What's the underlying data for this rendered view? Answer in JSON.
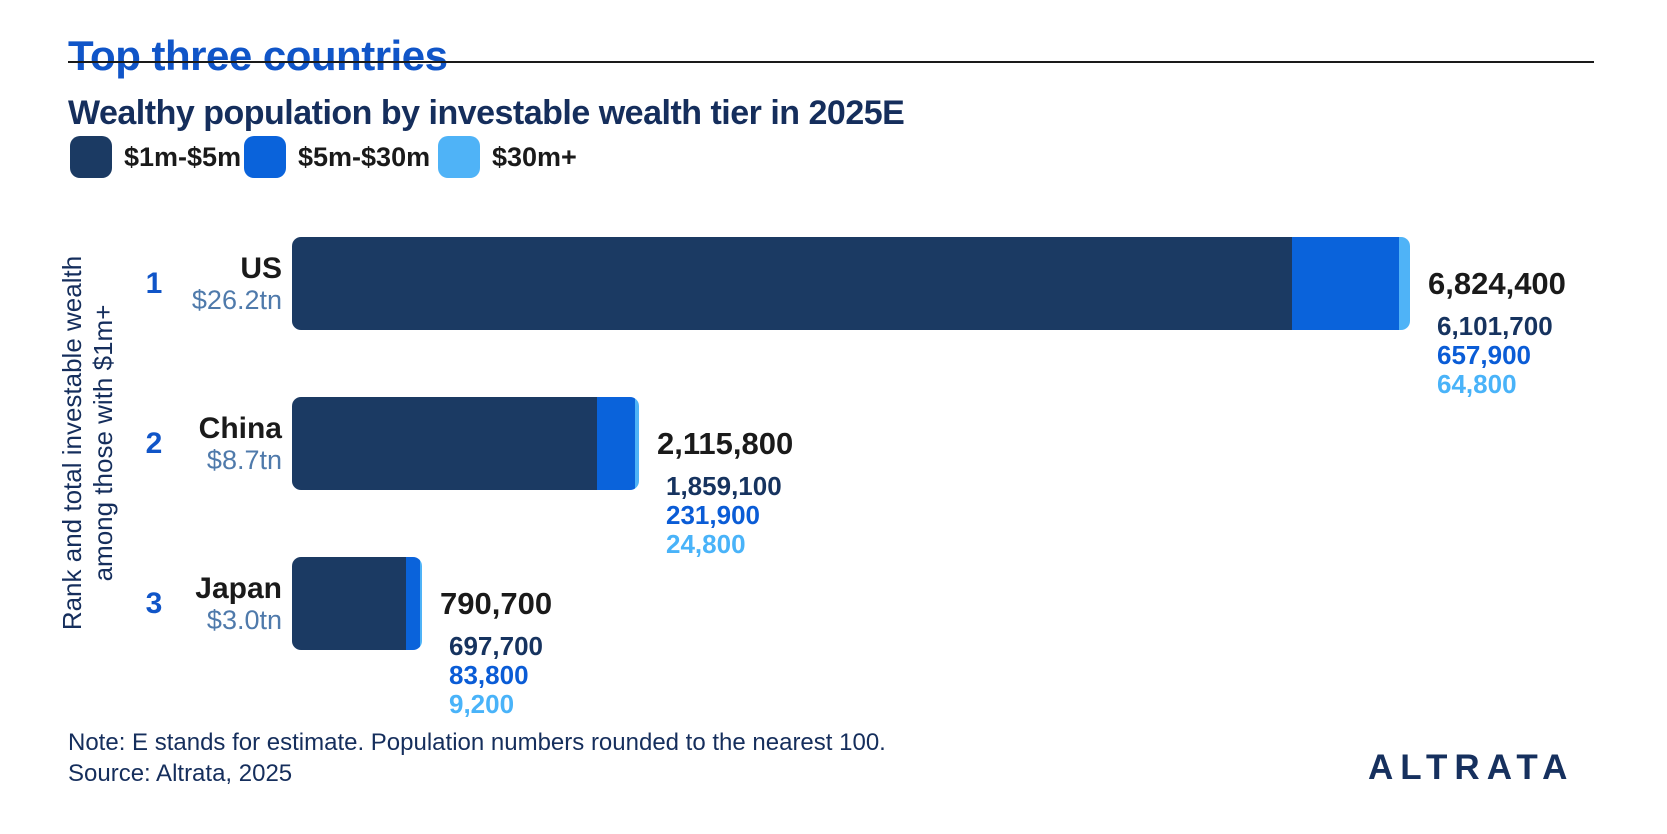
{
  "header": {
    "title": "Top three countries",
    "subtitle": "Wealthy population by investable wealth tier in 2025E"
  },
  "legend": {
    "items": [
      {
        "label": "$1m-$5m",
        "color": "#1B3A63"
      },
      {
        "label": "$5m-$30m",
        "color": "#0A63DB"
      },
      {
        "label": "$30m+",
        "color": "#4FB3F7"
      }
    ]
  },
  "y_axis": {
    "line1": "Rank and total investable wealth",
    "line2": "among those with $1m+"
  },
  "rows": [
    {
      "rank": "1",
      "country": "US",
      "wealth": "$26.2tn",
      "total": "6,824,400",
      "tiers": {
        "t1": "6,101,700",
        "t2": "657,900",
        "t3": "64,800"
      }
    },
    {
      "rank": "2",
      "country": "China",
      "wealth": "$8.7tn",
      "total": "2,115,800",
      "tiers": {
        "t1": "1,859,100",
        "t2": "231,900",
        "t3": "24,800"
      }
    },
    {
      "rank": "3",
      "country": "Japan",
      "wealth": "$3.0tn",
      "total": "790,700",
      "tiers": {
        "t1": "697,700",
        "t2": "83,800",
        "t3": "9,200"
      }
    }
  ],
  "chart_data": {
    "type": "bar",
    "orientation": "horizontal",
    "stacked": true,
    "title": "Top three countries",
    "subtitle": "Wealthy population by investable wealth tier in 2025E",
    "categories": [
      "US",
      "China",
      "Japan"
    ],
    "category_meta": [
      {
        "rank": 1,
        "total_investable_wealth": "$26.2tn"
      },
      {
        "rank": 2,
        "total_investable_wealth": "$8.7tn"
      },
      {
        "rank": 3,
        "total_investable_wealth": "$3.0tn"
      }
    ],
    "series": [
      {
        "name": "$1m-$5m",
        "color": "#1B3A63",
        "values": [
          6101700,
          1859100,
          697700
        ]
      },
      {
        "name": "$5m-$30m",
        "color": "#0A63DB",
        "values": [
          657900,
          231900,
          83800
        ]
      },
      {
        "name": "$30m+",
        "color": "#4FB3F7",
        "values": [
          64800,
          24800,
          9200
        ]
      }
    ],
    "totals": [
      6824400,
      2115800,
      790700
    ],
    "ylabel": "Rank and total investable wealth among those with $1m+",
    "xlabel": "",
    "legend_position": "top",
    "grid": false,
    "xlim": [
      0,
      6824400
    ]
  },
  "footer": {
    "note": "Note: E stands for estimate. Population numbers rounded to the nearest 100.",
    "source": "Source: Altrata, 2025",
    "logo": "ALTRATA"
  },
  "colors": {
    "title_blue": "#1055C8",
    "text_navy": "#152E5C",
    "tier1_navy": "#1B3A63",
    "tier2_blue": "#0A63DB",
    "tier3_light_blue": "#4FB3F7",
    "wealth_muted_blue": "#4F7AAB",
    "text_black": "#1A1A1A"
  }
}
